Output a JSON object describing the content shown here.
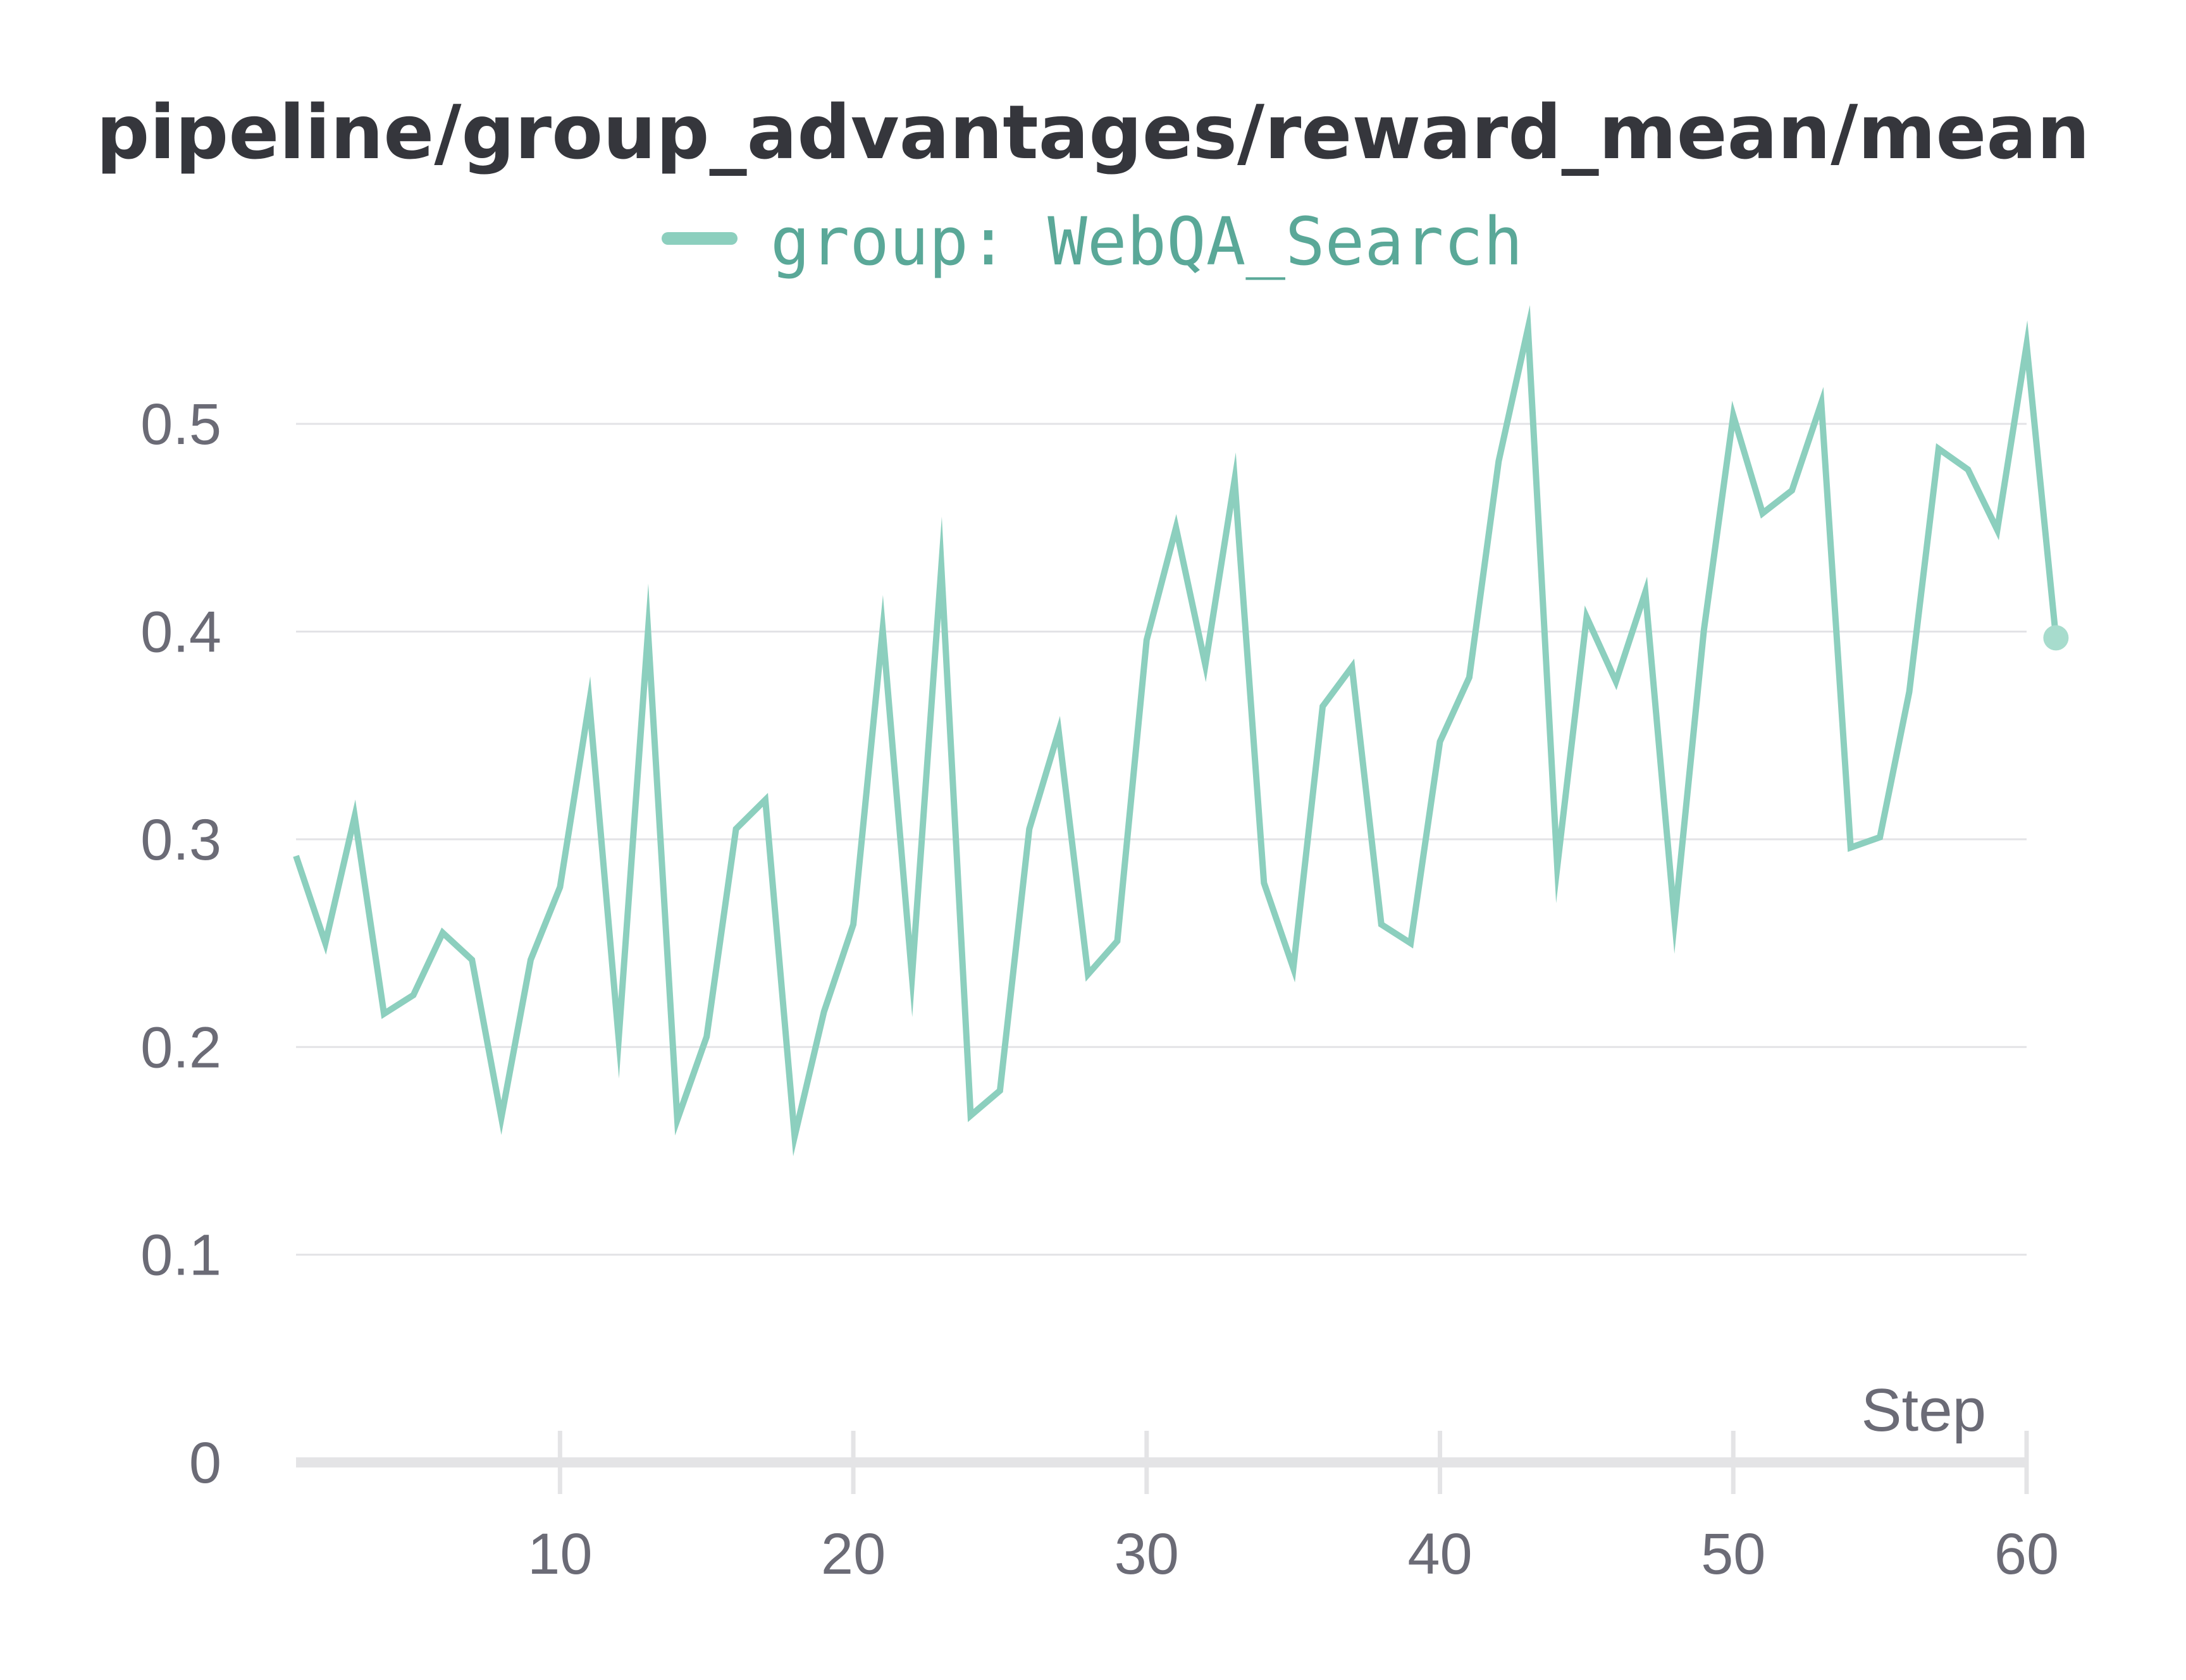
{
  "chart_data": {
    "type": "line",
    "title": "pipeline/group_advantages/reward_mean/mean",
    "xlabel": "Step",
    "ylabel": "",
    "xlim": [
      1,
      61
    ],
    "ylim": [
      0,
      0.55
    ],
    "x_ticks": [
      10,
      20,
      30,
      40,
      50,
      60
    ],
    "y_ticks": [
      0,
      0.1,
      0.2,
      0.3,
      0.4,
      0.5
    ],
    "y_tick_labels": [
      "0",
      "0.1",
      "0.2",
      "0.3",
      "0.4",
      "0.5"
    ],
    "grid": true,
    "legend": "top-center",
    "series": [
      {
        "name": "group: WebQA_Search",
        "color": "#8ccfbe",
        "x": [
          1,
          2,
          3,
          4,
          5,
          6,
          7,
          8,
          9,
          10,
          11,
          12,
          13,
          14,
          15,
          16,
          17,
          18,
          19,
          20,
          21,
          22,
          23,
          24,
          25,
          26,
          27,
          28,
          29,
          30,
          31,
          32,
          33,
          34,
          35,
          36,
          37,
          38,
          39,
          40,
          41,
          42,
          43,
          44,
          45,
          46,
          47,
          48,
          49,
          50,
          51,
          52,
          53,
          54,
          55,
          56,
          57,
          58,
          59,
          60,
          61
        ],
        "values": [
          0.292,
          0.25,
          0.311,
          0.216,
          0.225,
          0.255,
          0.242,
          0.166,
          0.242,
          0.277,
          0.366,
          0.204,
          0.4,
          0.165,
          0.205,
          0.305,
          0.319,
          0.157,
          0.217,
          0.259,
          0.401,
          0.234,
          0.431,
          0.167,
          0.179,
          0.305,
          0.352,
          0.235,
          0.251,
          0.396,
          0.45,
          0.384,
          0.473,
          0.279,
          0.238,
          0.364,
          0.383,
          0.259,
          0.25,
          0.347,
          0.378,
          0.482,
          0.546,
          0.287,
          0.407,
          0.376,
          0.419,
          0.261,
          0.401,
          0.504,
          0.457,
          0.468,
          0.51,
          0.296,
          0.301,
          0.371,
          0.488,
          0.478,
          0.449,
          0.538,
          0.397
        ]
      }
    ]
  }
}
